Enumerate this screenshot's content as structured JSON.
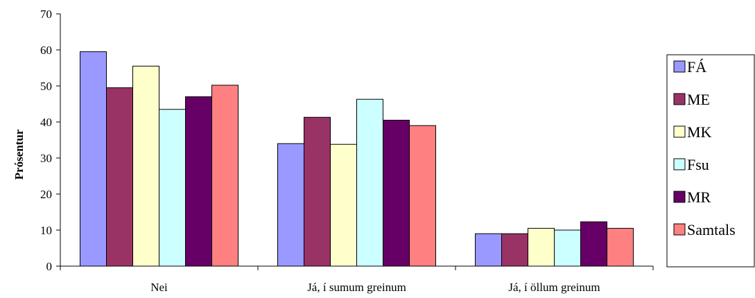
{
  "chart_data": {
    "type": "bar",
    "title": "",
    "xlabel": "",
    "ylabel": "Prósentur",
    "ylim": [
      0,
      70
    ],
    "yticks": [
      0,
      10,
      20,
      30,
      40,
      50,
      60,
      70
    ],
    "grid": false,
    "legend_position": "right",
    "categories": [
      "Nei",
      "Já, í sumum greinum",
      "Já, í öllum greinum"
    ],
    "series": [
      {
        "name": "FÁ",
        "color": "#9999FF",
        "values": [
          59.5,
          34,
          9
        ]
      },
      {
        "name": "ME",
        "color": "#993366",
        "values": [
          49.5,
          41.3,
          9
        ]
      },
      {
        "name": "MK",
        "color": "#FFFFCC",
        "values": [
          55.5,
          33.8,
          10.5
        ]
      },
      {
        "name": "Fsu",
        "color": "#CCFFFF",
        "values": [
          43.5,
          46.3,
          10
        ]
      },
      {
        "name": "MR",
        "color": "#660066",
        "values": [
          47,
          40.5,
          12.3
        ]
      },
      {
        "name": "Samtals",
        "color": "#FF8080",
        "values": [
          50.2,
          39,
          10.5
        ]
      }
    ]
  }
}
